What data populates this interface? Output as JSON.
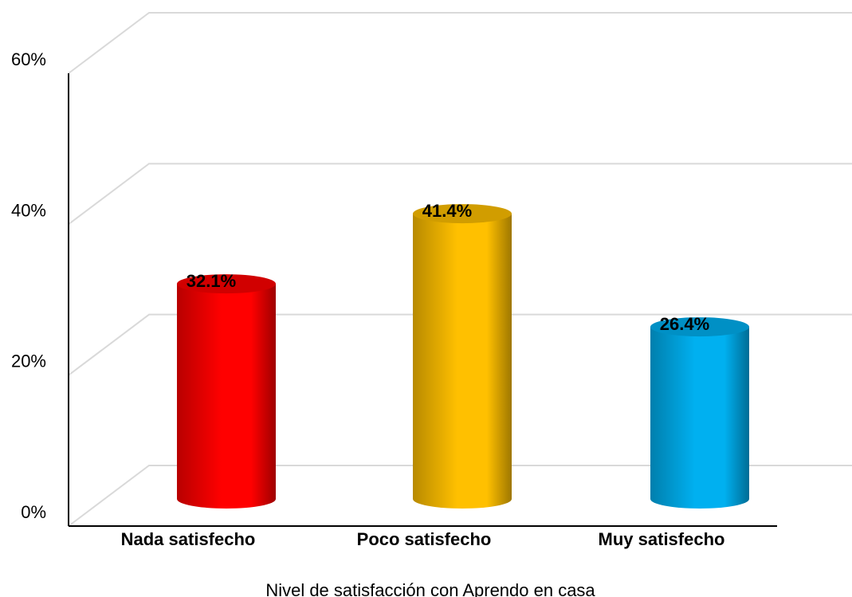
{
  "chart_data": {
    "type": "bar",
    "style": "3d-cylinder",
    "categories": [
      "Nada satisfecho",
      "Poco satisfecho",
      "Muy satisfecho"
    ],
    "values": [
      32.1,
      41.4,
      26.4
    ],
    "data_labels": [
      "32.1%",
      "41.4%",
      "26.4%"
    ],
    "colors": [
      "#ff0000",
      "#ffc000",
      "#00b0f0"
    ],
    "y_ticks": [
      "0%",
      "20%",
      "40%",
      "60%"
    ],
    "ylim": [
      0,
      60
    ],
    "xlabel": "Nivel de satisfacción con Aprendo en casa",
    "grid": true
  }
}
